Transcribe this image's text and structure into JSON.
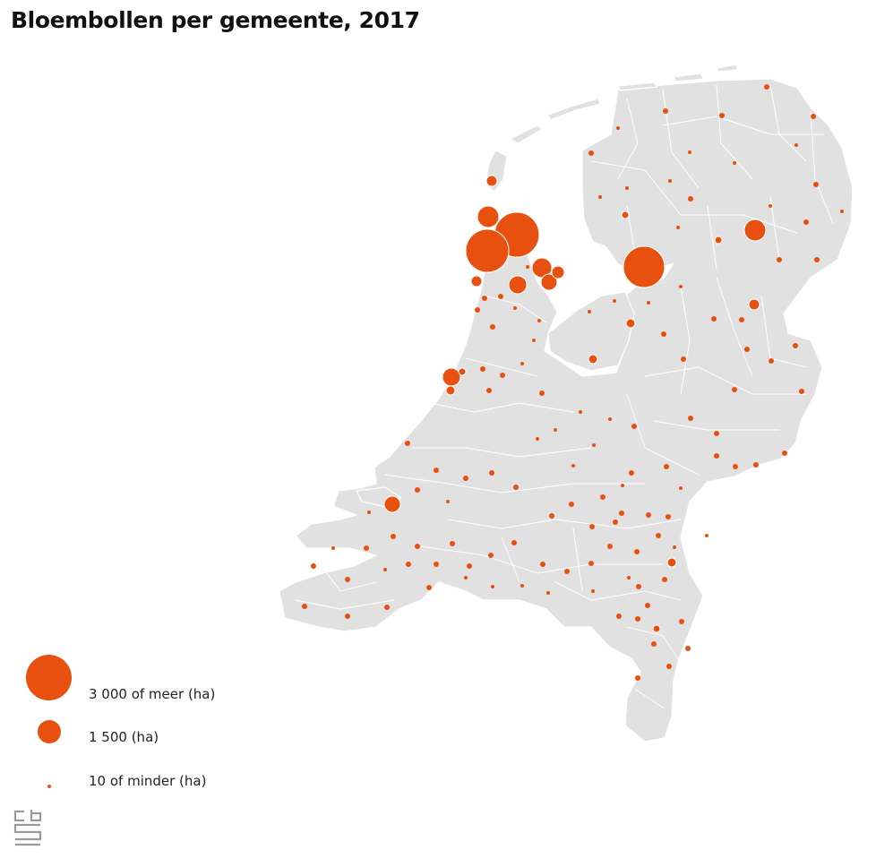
{
  "title": "Bloembollen per gemeente, 2017",
  "colors": {
    "bubble": "#e8500f",
    "land": "#e1e1e1",
    "border": "#ffffff",
    "logo": "#9a9a9a"
  },
  "legend": {
    "items": [
      {
        "label": "3 000 of meer (ha)",
        "value_ha": 3000
      },
      {
        "label": "1 500 (ha)",
        "value_ha": 1500
      },
      {
        "label": "10 of minder (ha)",
        "value_ha": 10
      }
    ]
  },
  "map": {
    "region": "Nederland",
    "unit": "ha",
    "year": 2017
  },
  "logo": {
    "name": "cbs"
  }
}
